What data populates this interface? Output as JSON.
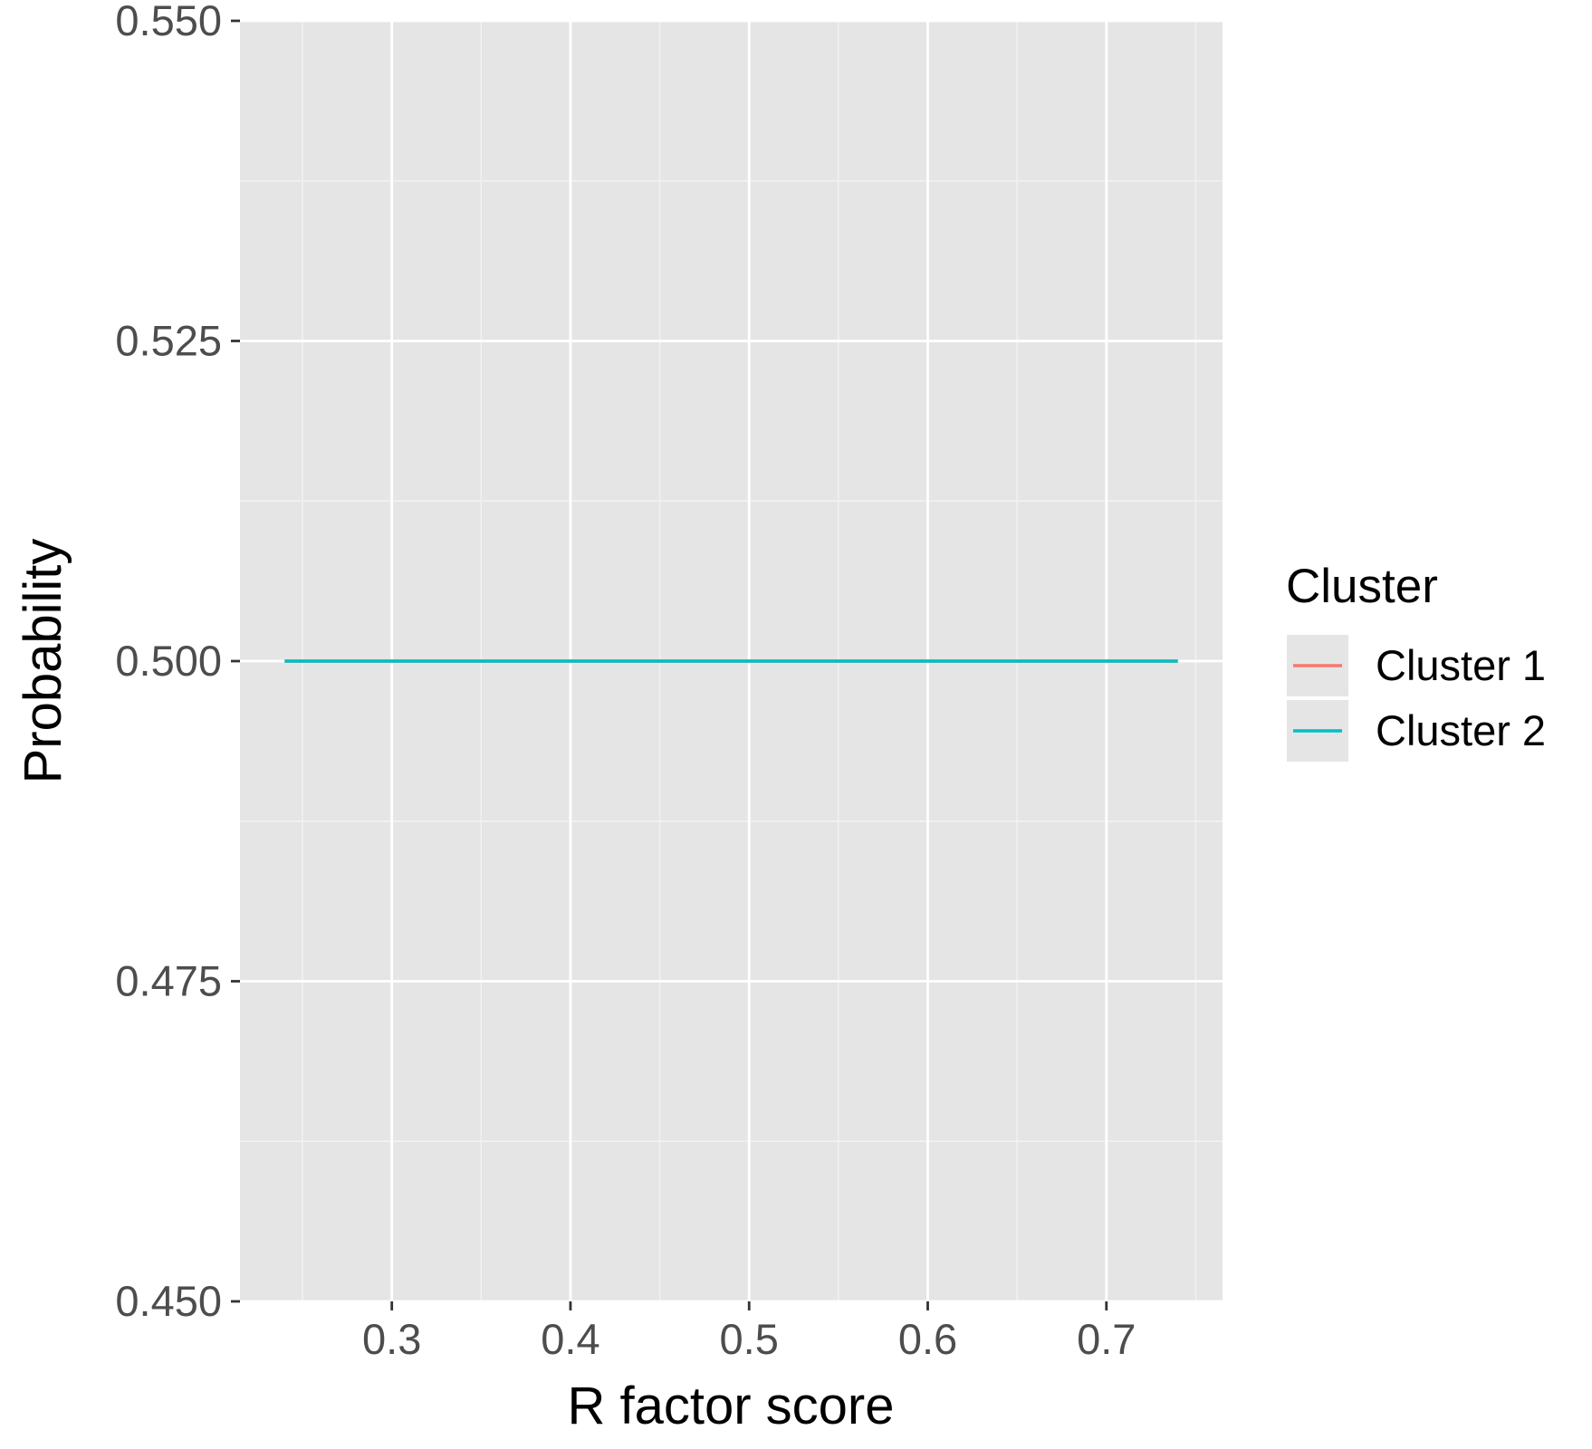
{
  "chart_data": {
    "type": "line",
    "xlabel": "R factor score",
    "ylabel": "Probability",
    "xlim": [
      0.215,
      0.765
    ],
    "ylim": [
      0.45,
      0.55
    ],
    "x_ticks": [
      0.3,
      0.4,
      0.5,
      0.6,
      0.7
    ],
    "x_tick_labels": [
      "0.3",
      "0.4",
      "0.5",
      "0.6",
      "0.7"
    ],
    "x_minor_ticks": [
      0.25,
      0.35,
      0.45,
      0.55,
      0.65,
      0.75
    ],
    "y_ticks": [
      0.45,
      0.475,
      0.5,
      0.525,
      0.55
    ],
    "y_tick_labels": [
      "0.450",
      "0.475",
      "0.500",
      "0.525",
      "0.550"
    ],
    "y_minor_ticks": [
      0.4625,
      0.4875,
      0.5125,
      0.5375
    ],
    "grid": true,
    "legend": {
      "title": "Cluster",
      "position": "right",
      "entries": [
        "Cluster 1",
        "Cluster 2"
      ]
    },
    "series": [
      {
        "name": "Cluster 1",
        "color": "#F8766D",
        "x": [
          0.24,
          0.74
        ],
        "y": [
          0.5,
          0.5
        ]
      },
      {
        "name": "Cluster 2",
        "color": "#00BFC4",
        "x": [
          0.24,
          0.74
        ],
        "y": [
          0.5,
          0.5
        ]
      }
    ]
  },
  "colors": {
    "panel_background": "#E5E5E5",
    "grid_major": "#FFFFFF",
    "grid_minor": "#F2F2F2",
    "tick_text": "#4D4D4D",
    "axis_tick": "#333333"
  }
}
